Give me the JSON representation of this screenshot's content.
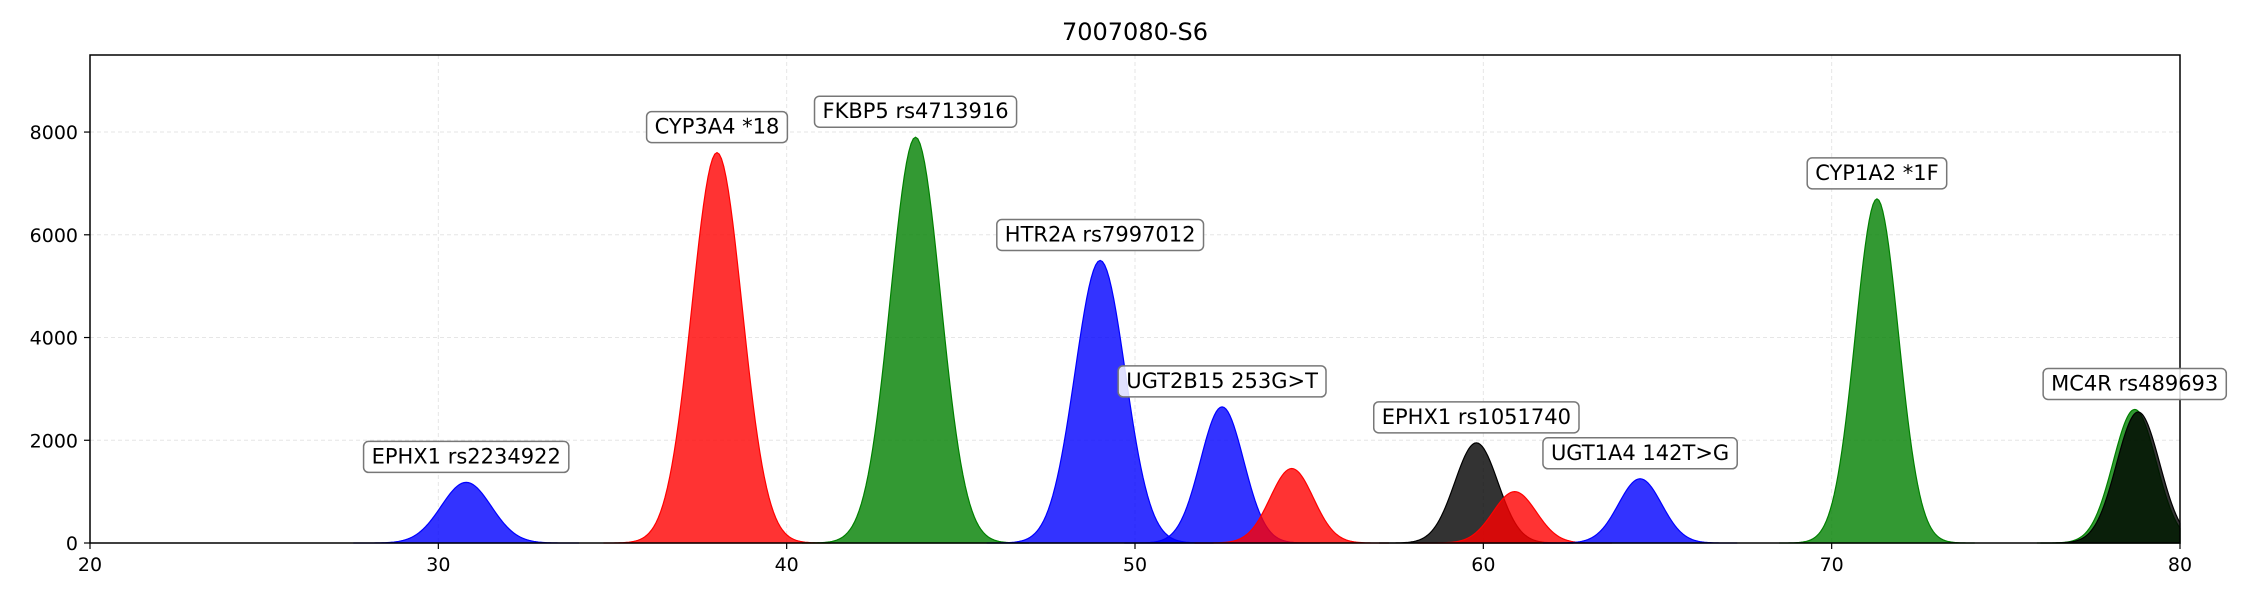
{
  "chart_data": {
    "type": "area",
    "title": "7007080-S6",
    "xlabel": "",
    "ylabel": "",
    "xlim": [
      20,
      80
    ],
    "ylim": [
      0,
      9500
    ],
    "xticks": [
      20,
      30,
      40,
      50,
      60,
      70,
      80
    ],
    "yticks": [
      0,
      2000,
      4000,
      6000,
      8000
    ],
    "grid": true,
    "legend": "none",
    "peaks": [
      {
        "center": 30.8,
        "height": 1180,
        "sigma": 0.72,
        "color": "#0000ff",
        "label": "EPHX1 rs2234922"
      },
      {
        "center": 38.0,
        "height": 7600,
        "sigma": 0.72,
        "color": "#ff0000",
        "label": "CYP3A4 *18"
      },
      {
        "center": 43.7,
        "height": 7900,
        "sigma": 0.72,
        "color": "#008000",
        "label": "FKBP5 rs4713916"
      },
      {
        "center": 49.0,
        "height": 5500,
        "sigma": 0.72,
        "color": "#0000ff",
        "label": "HTR2A rs7997012"
      },
      {
        "center": 52.5,
        "height": 2650,
        "sigma": 0.62,
        "color": "#0000ff",
        "label": "UGT2B15 253G>T"
      },
      {
        "center": 54.5,
        "height": 1450,
        "sigma": 0.62,
        "color": "#ff0000",
        "label": ""
      },
      {
        "center": 59.8,
        "height": 1950,
        "sigma": 0.62,
        "color": "#000000",
        "label": "EPHX1 rs1051740"
      },
      {
        "center": 60.9,
        "height": 1000,
        "sigma": 0.62,
        "color": "#ff0000",
        "label": ""
      },
      {
        "center": 64.5,
        "height": 1250,
        "sigma": 0.62,
        "color": "#0000ff",
        "label": "UGT1A4 142T>G"
      },
      {
        "center": 71.3,
        "height": 6700,
        "sigma": 0.62,
        "color": "#008000",
        "label": "CYP1A2 *1F"
      },
      {
        "center": 78.7,
        "height": 2600,
        "sigma": 0.62,
        "color": "#008000",
        "label": "MC4R rs489693"
      },
      {
        "center": 78.8,
        "height": 2550,
        "sigma": 0.62,
        "color": "#000000",
        "label": ""
      }
    ]
  }
}
